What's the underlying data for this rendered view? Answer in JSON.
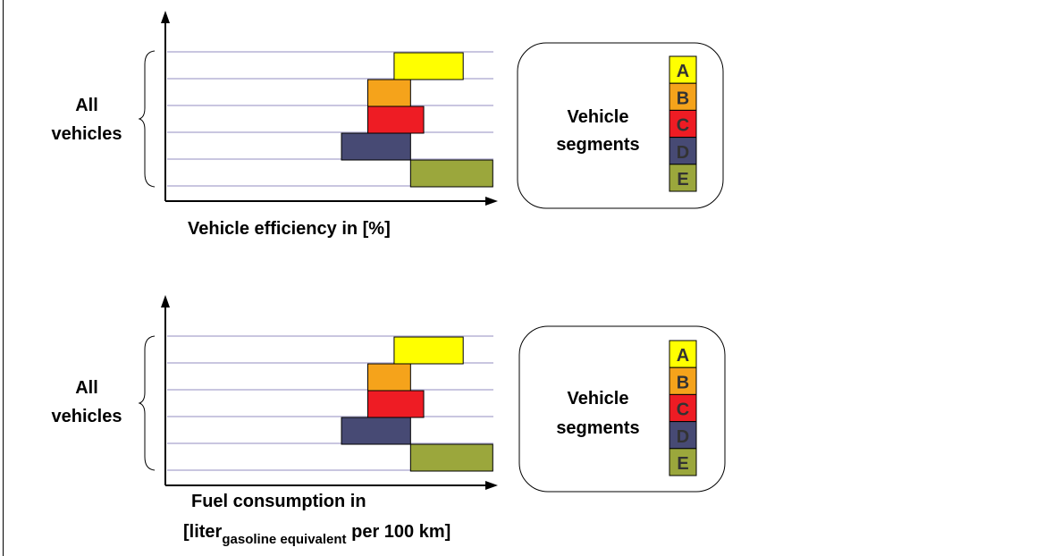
{
  "colors": {
    "A": "#ffff00",
    "B": "#f5a31b",
    "C": "#ee1c24",
    "D": "#474a74",
    "E": "#9ba73c",
    "gridline": "#c9c6e0",
    "axis": "#000000"
  },
  "segments": [
    {
      "letter": "A",
      "color": "#ffff00"
    },
    {
      "letter": "B",
      "color": "#f5a31b"
    },
    {
      "letter": "C",
      "color": "#ee1c24"
    },
    {
      "letter": "D",
      "color": "#474a74"
    },
    {
      "letter": "E",
      "color": "#9ba73c"
    }
  ],
  "panels": [
    {
      "y_label_line1": "All",
      "y_label_line2": "vehicles",
      "x_label_line1": "Vehicle efficiency in [%]",
      "x_label_line2": "",
      "legend_line1": "Vehicle",
      "legend_line2": "segments"
    },
    {
      "y_label_line1": "All",
      "y_label_line2": "vehicles",
      "x_label_line1": "Fuel consumption in",
      "x_label_line2_prefix": "[liter",
      "x_label_line2_sub": "gasoline equivalent",
      "x_label_line2_suffix": " per 100 km]",
      "legend_line1": "Vehicle",
      "legend_line2": "segments"
    }
  ],
  "chart_data": [
    {
      "type": "bar",
      "orientation": "horizontal-floating",
      "categories": [
        "A",
        "B",
        "C",
        "D",
        "E"
      ],
      "ranges": [
        [
          0.69,
          0.9
        ],
        [
          0.61,
          0.74
        ],
        [
          0.61,
          0.78
        ],
        [
          0.53,
          0.74
        ],
        [
          0.74,
          0.99
        ]
      ],
      "xlabel": "Vehicle efficiency in [%]",
      "ylabel": "All vehicles",
      "ticks": "none",
      "grid": true
    },
    {
      "type": "bar",
      "orientation": "horizontal-floating",
      "categories": [
        "A",
        "B",
        "C",
        "D",
        "E"
      ],
      "ranges": [
        [
          0.69,
          0.9
        ],
        [
          0.61,
          0.74
        ],
        [
          0.61,
          0.78
        ],
        [
          0.53,
          0.74
        ],
        [
          0.74,
          0.99
        ]
      ],
      "xlabel": "Fuel consumption in [liter gasoline equivalent per 100 km]",
      "ylabel": "All vehicles",
      "ticks": "none",
      "grid": true
    }
  ]
}
